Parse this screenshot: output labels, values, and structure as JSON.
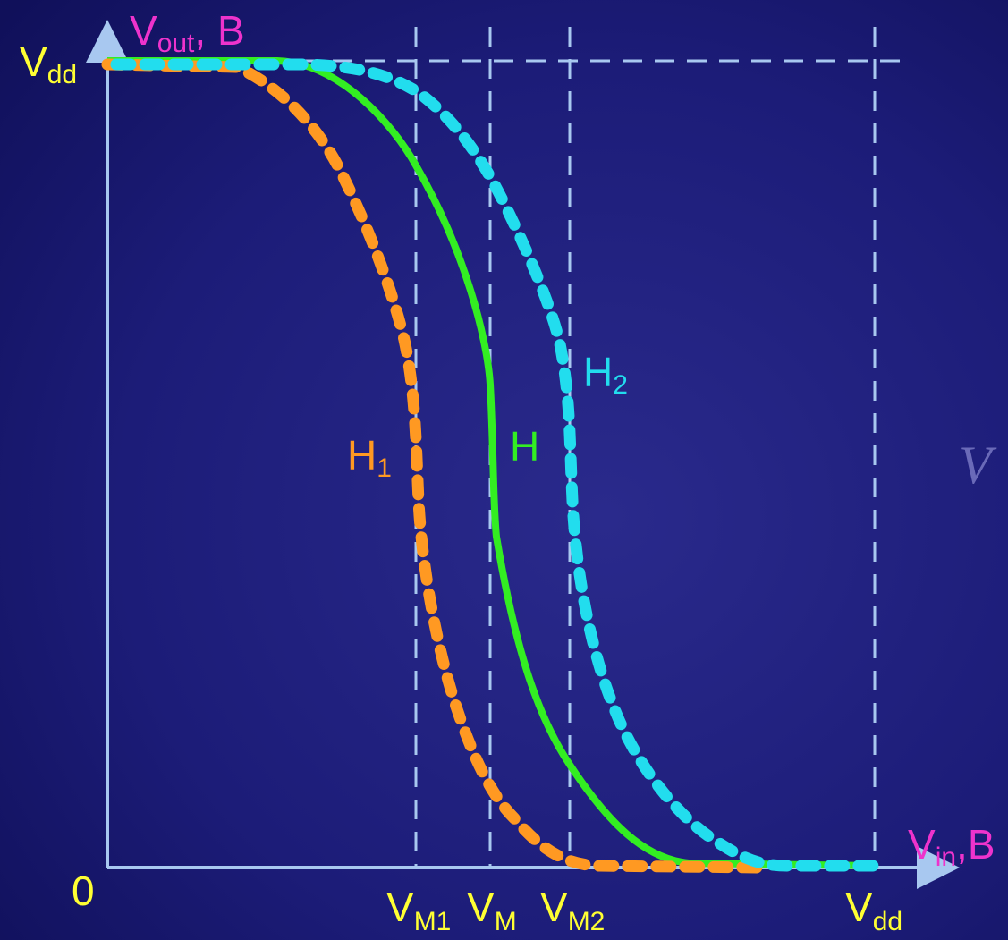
{
  "axes": {
    "y_label": {
      "main": "V",
      "sub": "out",
      "suffix": ", B"
    },
    "x_label": {
      "main": "V",
      "sub": "in",
      "suffix": ",B"
    },
    "origin": "0",
    "y_top": {
      "main": "V",
      "sub": "dd"
    },
    "x_ticks": [
      {
        "main": "V",
        "sub": "M1"
      },
      {
        "main": "V",
        "sub": "M"
      },
      {
        "main": "V",
        "sub": "M2"
      },
      {
        "main": "V",
        "sub": "dd"
      }
    ]
  },
  "curves": [
    {
      "main": "H",
      "sub": "1"
    },
    {
      "main": "H"
    },
    {
      "main": "H",
      "sub": "2"
    }
  ],
  "side_text": "V"
}
